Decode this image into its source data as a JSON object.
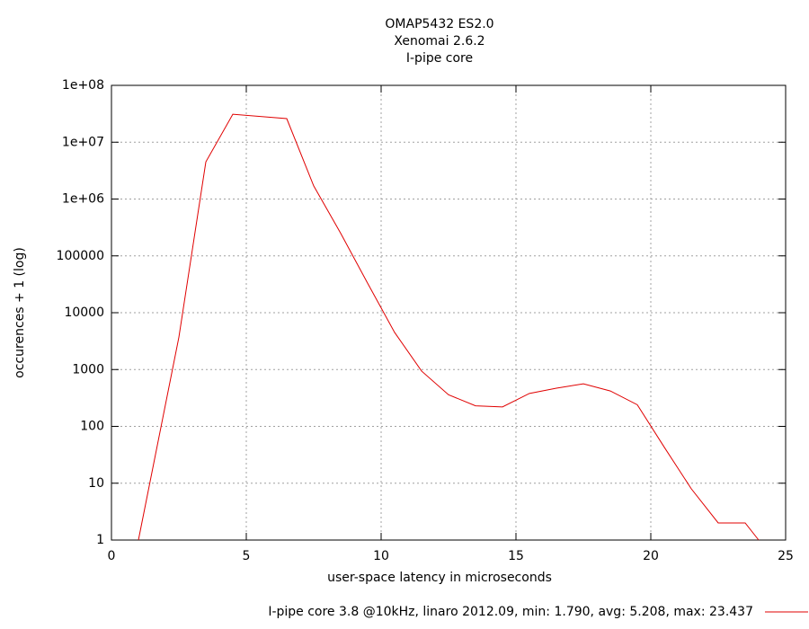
{
  "chart_data": {
    "type": "line",
    "title": [
      "OMAP5432 ES2.0",
      "Xenomai 2.6.2",
      "I-pipe core"
    ],
    "x_label": "user-space latency in microseconds",
    "y_label": "occurences + 1 (log)",
    "y_scale": "log",
    "grid": true,
    "legend": "bottom-right",
    "xlim": [
      0,
      25
    ],
    "xticks": [
      0,
      5,
      10,
      15,
      20,
      25
    ],
    "ylim": [
      1,
      100000000
    ],
    "yticks": [
      1,
      10,
      100,
      1000,
      10000,
      100000,
      {
        "value": 1000000,
        "label": "1e+06"
      },
      {
        "value": 10000000,
        "label": "1e+07"
      },
      {
        "value": 100000000,
        "label": "1e+08"
      }
    ],
    "series": [
      {
        "name": "I-pipe core 3.8 @10kHz, linaro 2012.09, min: 1.790, avg: 5.208, max: 23.437",
        "color": "#e00000",
        "x": [
          1,
          2.5,
          3.5,
          4.5,
          6.5,
          7.5,
          8.5,
          9.5,
          10.5,
          11.5,
          12.5,
          13.5,
          14.5,
          15.5,
          16.5,
          17.5,
          18.5,
          19.5,
          20.5,
          21.5,
          22.5,
          23.5,
          24
        ],
        "values": [
          1,
          3700,
          4500000,
          31000000,
          26000000,
          1700000,
          250000,
          33000,
          4500,
          940,
          360,
          230,
          220,
          380,
          470,
          560,
          420,
          240,
          43,
          8,
          2,
          2,
          1
        ]
      }
    ]
  }
}
